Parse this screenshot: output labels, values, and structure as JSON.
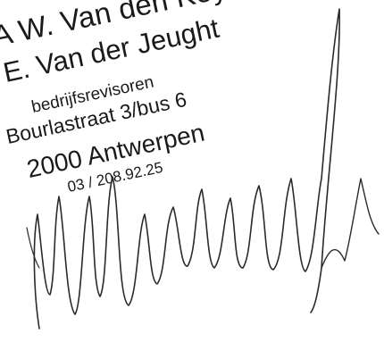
{
  "stamp": {
    "lines": [
      "A W. Van den Keybus",
      "E. Van der Jeught",
      "bedrijfsrevisoren",
      "Bourlastraat 3/bus 6",
      "2000 Antwerpen",
      "03 / 208.92.25"
    ],
    "ink_color": "#1a1a1a"
  },
  "signature": {
    "ink_color": "#2a2a2a"
  }
}
